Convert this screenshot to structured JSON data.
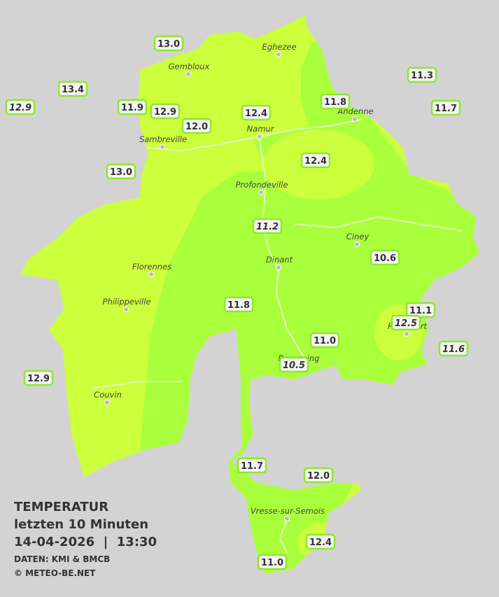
{
  "cities": [
    {
      "name": "Eghezee"
    },
    {
      "name": "Gembloux"
    },
    {
      "name": "Andenne"
    },
    {
      "name": "Namur"
    },
    {
      "name": "Sambreville"
    },
    {
      "name": "Profondeville"
    },
    {
      "name": "Ciney"
    },
    {
      "name": "Florennes"
    },
    {
      "name": "Dinant"
    },
    {
      "name": "Philippeville"
    },
    {
      "name": "Rochefort"
    },
    {
      "name": "Beauraing"
    },
    {
      "name": "Couvin"
    },
    {
      "name": "Vresse-sur-Semois"
    }
  ],
  "stations": [
    {
      "label": "13.0",
      "italic": false
    },
    {
      "label": "13.4",
      "italic": false
    },
    {
      "label": "12.9",
      "italic": true
    },
    {
      "label": "11.9",
      "italic": false
    },
    {
      "label": "12.9",
      "italic": false
    },
    {
      "label": "12.0",
      "italic": false
    },
    {
      "label": "12.4",
      "italic": false
    },
    {
      "label": "11.8",
      "italic": false
    },
    {
      "label": "11.3",
      "italic": false
    },
    {
      "label": "11.7",
      "italic": false
    },
    {
      "label": "13.0",
      "italic": false
    },
    {
      "label": "12.4",
      "italic": false
    },
    {
      "label": "11.2",
      "italic": true
    },
    {
      "label": "10.6",
      "italic": false
    },
    {
      "label": "11.8",
      "italic": false
    },
    {
      "label": "11.1",
      "italic": false
    },
    {
      "label": "12.5",
      "italic": true
    },
    {
      "label": "11.0",
      "italic": false
    },
    {
      "label": "10.5",
      "italic": true
    },
    {
      "label": "11.6",
      "italic": true
    },
    {
      "label": "12.9",
      "italic": false
    },
    {
      "label": "11.7",
      "italic": false
    },
    {
      "label": "12.0",
      "italic": false
    },
    {
      "label": "12.4",
      "italic": false
    },
    {
      "label": "11.0",
      "italic": false
    }
  ],
  "caption": {
    "title": "TEMPERATUR",
    "subtitle": "letzten 10 Minuten",
    "datetime": "14-04-2026  |  13:30",
    "source": "DATEN: KMI & BMCB",
    "copyright": "© METEO-BE.NET"
  }
}
